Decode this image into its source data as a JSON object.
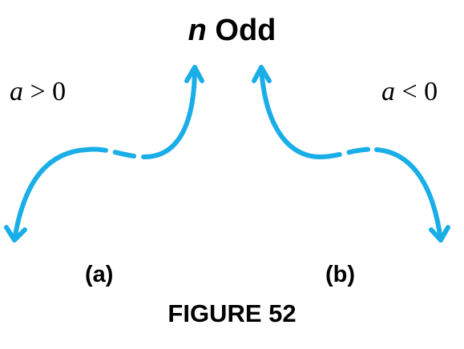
{
  "title": {
    "variable": "n",
    "word": "Odd"
  },
  "panel_a": {
    "condition_var": "a",
    "condition_rest": " > 0",
    "label": "(a)"
  },
  "panel_b": {
    "condition_var": "a",
    "condition_rest": " < 0",
    "label": "(b)"
  },
  "caption": "FIGURE 52",
  "colors": {
    "curve": "#1aaee8",
    "text": "#000000"
  }
}
